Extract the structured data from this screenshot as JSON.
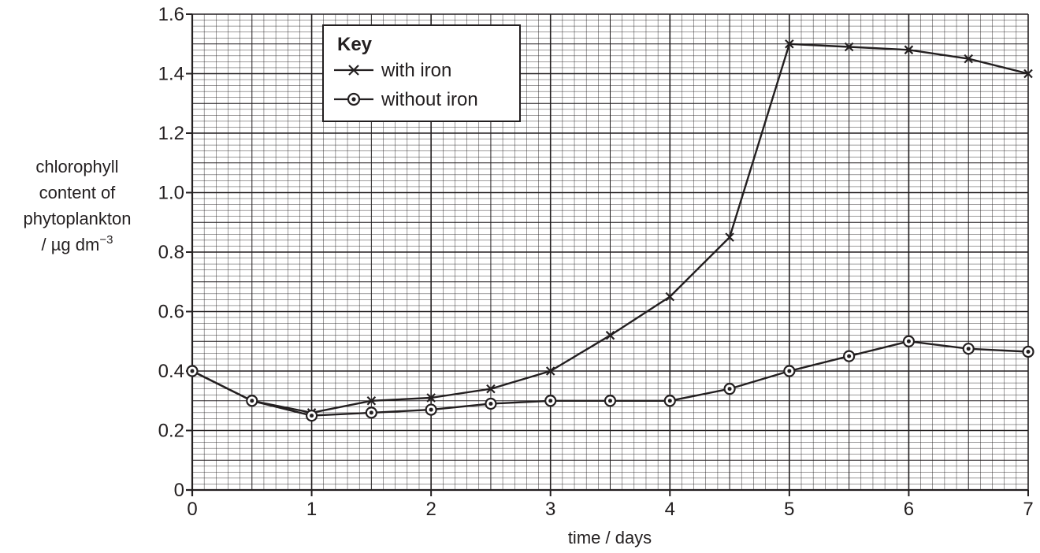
{
  "chart_data": {
    "type": "line",
    "x": [
      0,
      0.5,
      1,
      1.5,
      2,
      2.5,
      3,
      3.5,
      4,
      4.5,
      5,
      5.5,
      6,
      6.5,
      7
    ],
    "series": [
      {
        "name": "with iron",
        "marker": "cross",
        "values": [
          0.4,
          0.3,
          0.26,
          0.3,
          0.31,
          0.34,
          0.4,
          0.52,
          0.65,
          0.85,
          1.5,
          1.49,
          1.48,
          1.45,
          1.4
        ]
      },
      {
        "name": "without iron",
        "marker": "circle-dot",
        "values": [
          0.4,
          0.3,
          0.25,
          0.26,
          0.27,
          0.29,
          0.3,
          0.3,
          0.3,
          0.34,
          0.4,
          0.45,
          0.5,
          0.475,
          0.465
        ]
      }
    ],
    "xlabel": "time / days",
    "ylabel_lines": [
      "chlorophyll",
      "content of",
      "phytoplankton"
    ],
    "ylabel_unit": "/ µg dm",
    "ylabel_unit_superscript": "−3",
    "xlim": [
      0,
      7
    ],
    "ylim": [
      0,
      1.6
    ],
    "x_ticks": [
      "0",
      "1",
      "2",
      "3",
      "4",
      "5",
      "6",
      "7"
    ],
    "y_ticks": [
      "0",
      "0.2",
      "0.4",
      "0.6",
      "0.8",
      "1.0",
      "1.2",
      "1.4",
      "1.6"
    ],
    "grid": true,
    "legend": {
      "title": "Key",
      "placement": "top-left"
    },
    "colors": {
      "ink": "#231f20",
      "background": "#ffffff"
    }
  }
}
